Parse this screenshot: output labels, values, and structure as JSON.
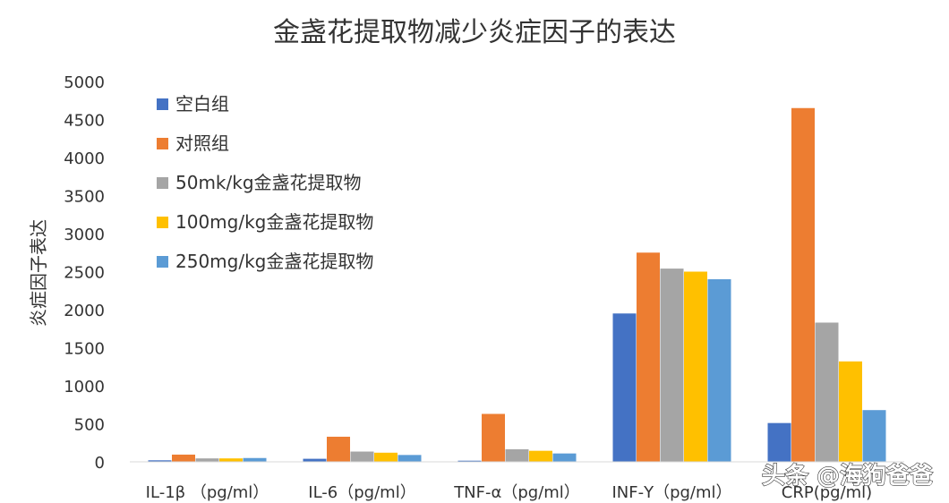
{
  "chart_data": {
    "type": "bar",
    "title": "金盏花提取物减少炎症因子的表达",
    "xlabel": "",
    "ylabel": "炎症因子表达",
    "ylim": [
      0,
      5000
    ],
    "yticks": [
      0,
      500,
      1000,
      1500,
      2000,
      2500,
      3000,
      3500,
      4000,
      4500,
      5000
    ],
    "grid": false,
    "legend_position": "top-left",
    "categories": [
      "IL-1β  （pg/ml）",
      "IL-6（pg/ml）",
      "TNF-α（pg/ml）",
      "INF-Υ（pg/ml）",
      "CRP(pg/ml)"
    ],
    "series": [
      {
        "name": "空白组",
        "color": "#4472C4",
        "values": [
          20,
          40,
          15,
          1950,
          510
        ]
      },
      {
        "name": "对照组",
        "color": "#ED7D31",
        "values": [
          95,
          330,
          630,
          2750,
          4650
        ]
      },
      {
        "name": "50mk/kg金盏花提取物",
        "color": "#A5A5A5",
        "values": [
          45,
          135,
          165,
          2540,
          1830
        ]
      },
      {
        "name": "100mg/kg金盏花提取物",
        "color": "#FFC000",
        "values": [
          45,
          120,
          145,
          2500,
          1320
        ]
      },
      {
        "name": "250mg/kg金盏花提取物",
        "color": "#5B9BD5",
        "values": [
          50,
          90,
          110,
          2400,
          680
        ]
      }
    ]
  },
  "watermark": {
    "text": "头条 @海狗爸爸"
  }
}
